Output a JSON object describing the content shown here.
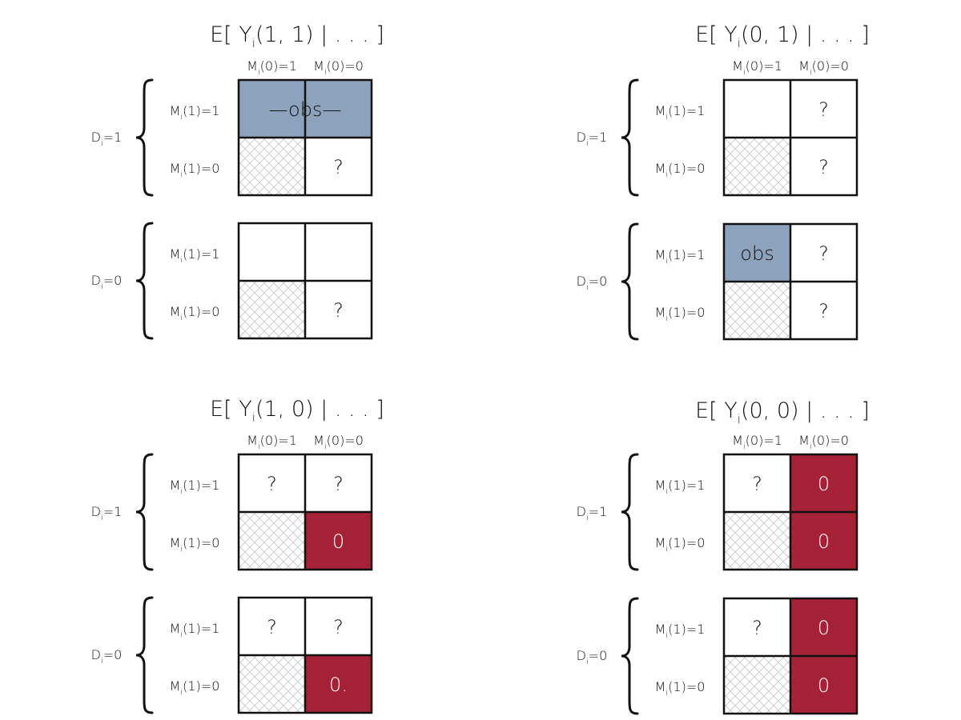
{
  "colors": {
    "observed": "#8da2bc",
    "zero": "#a52236",
    "hatch": "#bdbdbd",
    "border": "#111111"
  },
  "labels": {
    "m0_equals_1": [
      "M",
      "i",
      "(0)=1"
    ],
    "m0_equals_0": [
      "M",
      "i",
      "(0)=0"
    ],
    "m1_equals_1": [
      "M",
      "i",
      "(1)=1"
    ],
    "m1_equals_0": [
      "M",
      "i",
      "(1)=0"
    ],
    "d_equals_1": [
      "D",
      "i",
      "=1"
    ],
    "d_equals_0": [
      "D",
      "i",
      "=0"
    ]
  },
  "panels": [
    {
      "id": "y11",
      "title": [
        "E[ Y",
        "i",
        "(1, 1) | . . . ]"
      ],
      "groups": [
        {
          "d_label": "d_equals_1",
          "cells": [
            {
              "fill": "observed",
              "text": "—obs—",
              "span": 2
            },
            null,
            {
              "fill": "hatch",
              "text": ""
            },
            {
              "fill": "white",
              "text": "?"
            }
          ]
        },
        {
          "d_label": "d_equals_0",
          "cells": [
            {
              "fill": "white",
              "text": ""
            },
            {
              "fill": "white",
              "text": ""
            },
            {
              "fill": "hatch",
              "text": ""
            },
            {
              "fill": "white",
              "text": "?"
            }
          ]
        }
      ]
    },
    {
      "id": "y01",
      "title": [
        "E[ Y",
        "i",
        "(0, 1) | . . . ]"
      ],
      "groups": [
        {
          "d_label": "d_equals_1",
          "cells": [
            {
              "fill": "white",
              "text": ""
            },
            {
              "fill": "white",
              "text": "?"
            },
            {
              "fill": "hatch",
              "text": ""
            },
            {
              "fill": "white",
              "text": "?"
            }
          ]
        },
        {
          "d_label": "d_equals_0",
          "cells": [
            {
              "fill": "observed",
              "text": "obs"
            },
            {
              "fill": "white",
              "text": "?"
            },
            {
              "fill": "hatch",
              "text": ""
            },
            {
              "fill": "white",
              "text": "?"
            }
          ]
        }
      ]
    },
    {
      "id": "y10",
      "title": [
        "E[ Y",
        "i",
        "(1, 0) | . . . ]"
      ],
      "groups": [
        {
          "d_label": "d_equals_1",
          "cells": [
            {
              "fill": "white",
              "text": "?"
            },
            {
              "fill": "white",
              "text": "?"
            },
            {
              "fill": "hatch",
              "text": ""
            },
            {
              "fill": "zero",
              "text": "0"
            }
          ]
        },
        {
          "d_label": "d_equals_0",
          "cells": [
            {
              "fill": "white",
              "text": "?"
            },
            {
              "fill": "white",
              "text": "?"
            },
            {
              "fill": "hatch",
              "text": ""
            },
            {
              "fill": "zero",
              "text": "0."
            }
          ]
        }
      ]
    },
    {
      "id": "y00",
      "title": [
        "E[ Y",
        "i",
        "(0, 0) | . . . ]"
      ],
      "groups": [
        {
          "d_label": "d_equals_1",
          "cells": [
            {
              "fill": "white",
              "text": "?"
            },
            {
              "fill": "zero",
              "text": "0"
            },
            {
              "fill": "hatch",
              "text": ""
            },
            {
              "fill": "zero",
              "text": "0"
            }
          ]
        },
        {
          "d_label": "d_equals_0",
          "cells": [
            {
              "fill": "white",
              "text": "?"
            },
            {
              "fill": "zero",
              "text": "0"
            },
            {
              "fill": "hatch",
              "text": ""
            },
            {
              "fill": "zero",
              "text": "0"
            }
          ]
        }
      ]
    }
  ]
}
